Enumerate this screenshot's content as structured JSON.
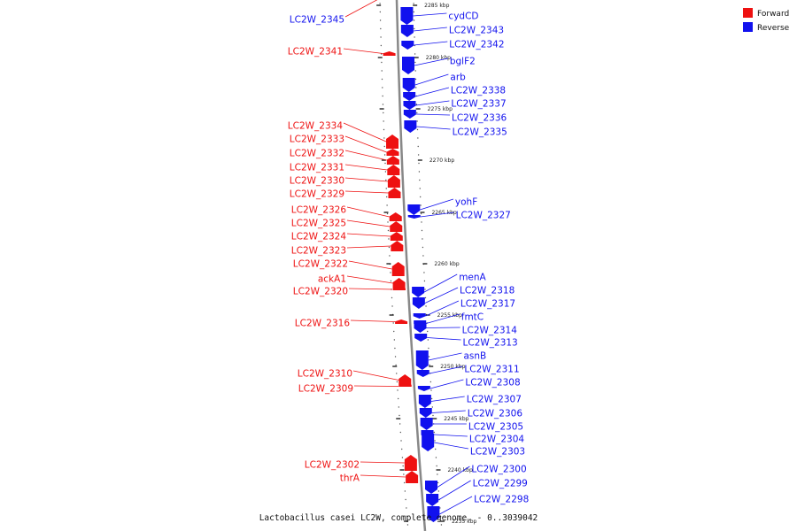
{
  "caption": "Lactobacillus casei LC2W, complete genome. - 0..3039042",
  "legend": [
    {
      "label": "Forward",
      "color": "#ee1111"
    },
    {
      "label": "Reverse",
      "color": "#1111ee"
    }
  ],
  "colors": {
    "forward": "#ee1111",
    "reverse": "#1111ee",
    "backbone": "#888888"
  },
  "ticks": [
    "2285 kbp",
    "2280 kbp",
    "2275 kbp",
    "2270 kbp",
    "2265 kbp",
    "2260 kbp",
    "2255 kbp",
    "2250 kbp",
    "2245 kbp",
    "2240 kbp",
    "2235 kbp"
  ],
  "forward_genes": [
    "LC2W_2345",
    "LC2W_2341",
    "LC2W_2334",
    "LC2W_2333",
    "LC2W_2332",
    "LC2W_2331",
    "LC2W_2330",
    "LC2W_2329",
    "LC2W_2326",
    "LC2W_2325",
    "LC2W_2324",
    "LC2W_2323",
    "LC2W_2322",
    "ackA1",
    "LC2W_2320",
    "LC2W_2316",
    "LC2W_2310",
    "LC2W_2309",
    "LC2W_2302",
    "thrA"
  ],
  "reverse_genes": [
    "cydCD",
    "LC2W_2343",
    "LC2W_2342",
    "bglF2",
    "arb",
    "LC2W_2338",
    "LC2W_2337",
    "LC2W_2336",
    "LC2W_2335",
    "yohF",
    "LC2W_2327",
    "menA",
    "LC2W_2318",
    "LC2W_2317",
    "fmtC",
    "LC2W_2314",
    "LC2W_2313",
    "asnB",
    "LC2W_2311",
    "LC2W_2308",
    "LC2W_2307",
    "LC2W_2306",
    "LC2W_2305",
    "LC2W_2304",
    "LC2W_2303",
    "LC2W_2300",
    "LC2W_2299",
    "LC2W_2298"
  ]
}
